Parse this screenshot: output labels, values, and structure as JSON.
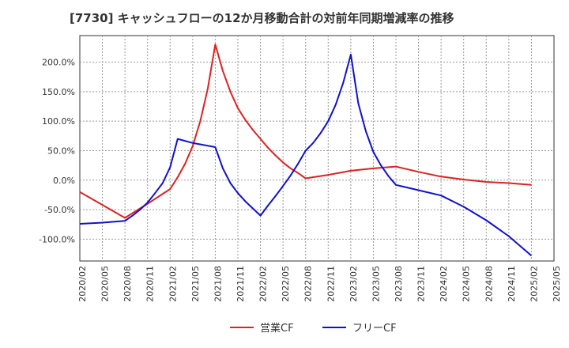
{
  "chart_data": {
    "type": "line",
    "title": "[7730]  キャッシュフローの12か月移動合計の対前年同期増減率の推移",
    "xlabel": "",
    "ylabel": "",
    "x_ticks": [
      "2020/02",
      "2020/05",
      "2020/08",
      "2020/11",
      "2021/02",
      "2021/05",
      "2021/08",
      "2021/11",
      "2022/02",
      "2022/05",
      "2022/08",
      "2022/11",
      "2023/02",
      "2023/05",
      "2023/08",
      "2023/11",
      "2024/02",
      "2024/05",
      "2024/08",
      "2024/11",
      "2025/02",
      "2025/05"
    ],
    "y_ticks": [
      "200.0%",
      "150.0%",
      "100.0%",
      "50.0%",
      "0.0%",
      "-50.0%",
      "-100.0%"
    ],
    "ylim": [
      -137,
      245
    ],
    "grid": true,
    "legend_position": "bottom",
    "series": [
      {
        "name": "営業CF",
        "color": "#dd2222",
        "points": [
          [
            "2020/02",
            -20
          ],
          [
            "2020/05",
            -42
          ],
          [
            "2020/08",
            -64
          ],
          [
            "2020/11",
            -40
          ],
          [
            "2021/02",
            -15
          ],
          [
            "2021/03",
            5
          ],
          [
            "2021/04",
            28
          ],
          [
            "2021/05",
            58
          ],
          [
            "2021/06",
            100
          ],
          [
            "2021/07",
            155
          ],
          [
            "2021/08",
            230
          ],
          [
            "2021/09",
            185
          ],
          [
            "2021/10",
            150
          ],
          [
            "2021/11",
            122
          ],
          [
            "2021/12",
            102
          ],
          [
            "2022/01",
            85
          ],
          [
            "2022/02",
            70
          ],
          [
            "2022/03",
            55
          ],
          [
            "2022/04",
            42
          ],
          [
            "2022/05",
            30
          ],
          [
            "2022/06",
            20
          ],
          [
            "2022/07",
            12
          ],
          [
            "2022/08",
            3
          ],
          [
            "2022/11",
            9
          ],
          [
            "2023/02",
            16
          ],
          [
            "2023/05",
            20
          ],
          [
            "2023/08",
            23
          ],
          [
            "2023/11",
            14
          ],
          [
            "2024/02",
            6
          ],
          [
            "2024/05",
            1
          ],
          [
            "2024/08",
            -3
          ],
          [
            "2024/11",
            -5
          ],
          [
            "2025/02",
            -8
          ]
        ]
      },
      {
        "name": "フリーCF",
        "color": "#1111cc",
        "points": [
          [
            "2020/02",
            -74
          ],
          [
            "2020/05",
            -72
          ],
          [
            "2020/08",
            -69
          ],
          [
            "2020/09",
            -60
          ],
          [
            "2020/10",
            -50
          ],
          [
            "2020/11",
            -38
          ],
          [
            "2020/12",
            -22
          ],
          [
            "2021/01",
            -5
          ],
          [
            "2021/02",
            22
          ],
          [
            "2021/03",
            70
          ],
          [
            "2021/05",
            63
          ],
          [
            "2021/08",
            56
          ],
          [
            "2021/09",
            20
          ],
          [
            "2021/10",
            -5
          ],
          [
            "2021/11",
            -22
          ],
          [
            "2021/12",
            -36
          ],
          [
            "2022/01",
            -48
          ],
          [
            "2022/02",
            -60
          ],
          [
            "2022/03",
            -43
          ],
          [
            "2022/04",
            -27
          ],
          [
            "2022/05",
            -10
          ],
          [
            "2022/06",
            8
          ],
          [
            "2022/07",
            28
          ],
          [
            "2022/08",
            50
          ],
          [
            "2022/09",
            63
          ],
          [
            "2022/10",
            80
          ],
          [
            "2022/11",
            100
          ],
          [
            "2022/12",
            128
          ],
          [
            "2023/01",
            165
          ],
          [
            "2023/02",
            213
          ],
          [
            "2023/03",
            130
          ],
          [
            "2023/04",
            83
          ],
          [
            "2023/05",
            48
          ],
          [
            "2023/06",
            25
          ],
          [
            "2023/07",
            7
          ],
          [
            "2023/08",
            -8
          ],
          [
            "2023/11",
            -17
          ],
          [
            "2024/02",
            -26
          ],
          [
            "2024/05",
            -45
          ],
          [
            "2024/08",
            -68
          ],
          [
            "2024/11",
            -95
          ],
          [
            "2025/02",
            -128
          ]
        ]
      }
    ]
  }
}
